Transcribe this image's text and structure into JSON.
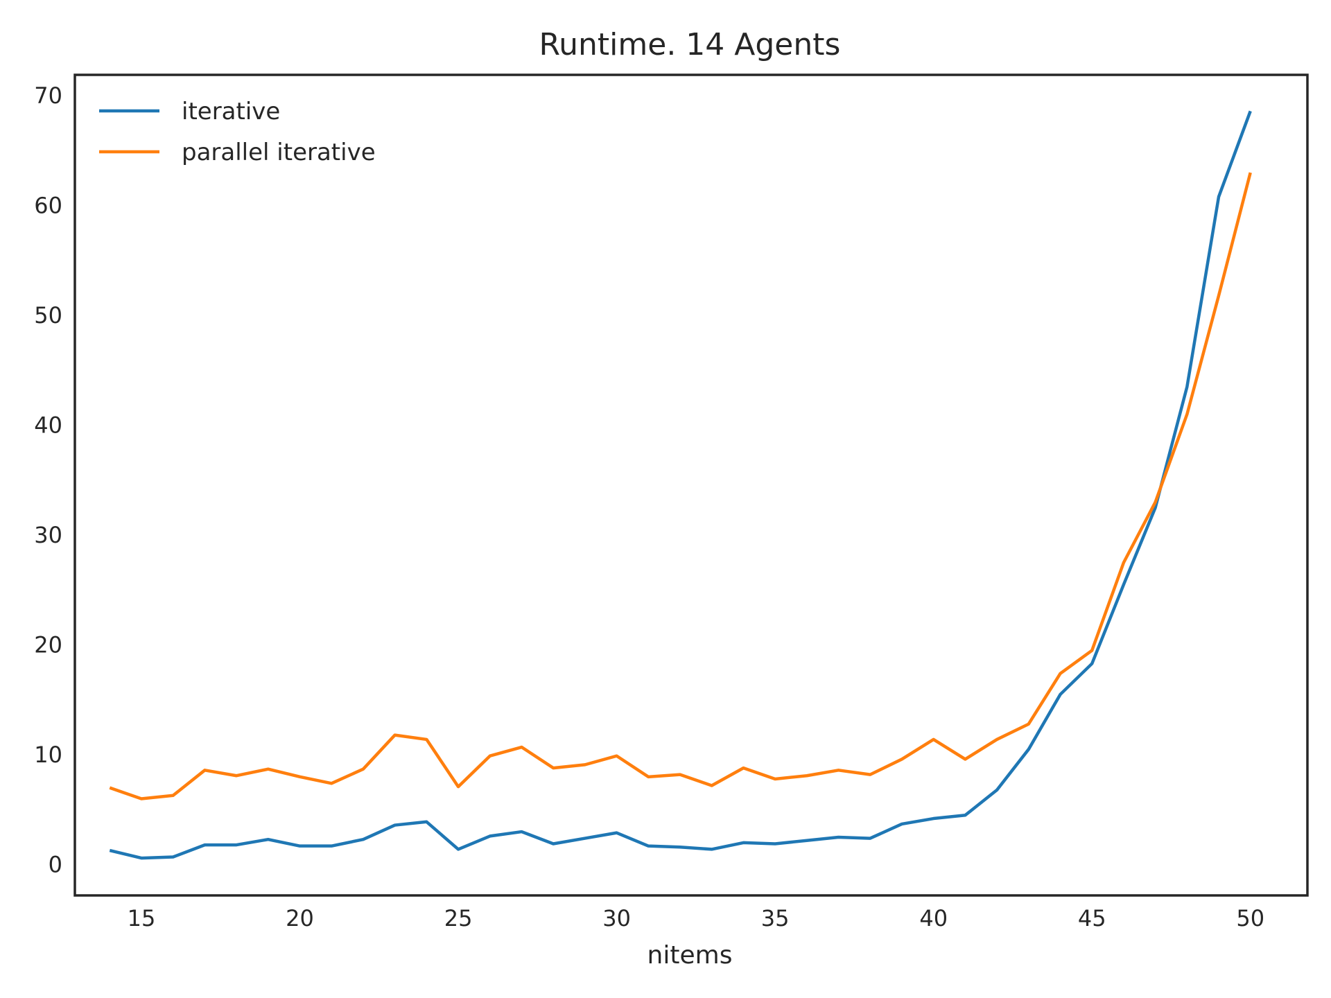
{
  "chart_data": {
    "type": "line",
    "title": "Runtime. 14 Agents",
    "xlabel": "nitems",
    "ylabel": "",
    "xlim": [
      12.9,
      51.8
    ],
    "ylim": [
      -2.8,
      71.9
    ],
    "xticks": [
      15,
      20,
      25,
      30,
      35,
      40,
      45,
      50
    ],
    "yticks": [
      0,
      10,
      20,
      30,
      40,
      50,
      60,
      70
    ],
    "grid": false,
    "legend_position": "top-left",
    "x": [
      14,
      15,
      16,
      17,
      18,
      19,
      20,
      21,
      22,
      23,
      24,
      25,
      26,
      27,
      28,
      29,
      30,
      31,
      32,
      33,
      34,
      35,
      36,
      37,
      38,
      39,
      40,
      41,
      42,
      43,
      44,
      45,
      46,
      47,
      48,
      49,
      50
    ],
    "series": [
      {
        "name": "iterative",
        "color": "#1f77b4",
        "values": [
          1.3,
          0.6,
          0.7,
          1.8,
          1.8,
          2.3,
          1.7,
          1.7,
          2.3,
          3.6,
          3.9,
          1.4,
          2.6,
          3.0,
          1.9,
          2.4,
          2.9,
          1.7,
          1.6,
          1.4,
          2.0,
          1.9,
          2.2,
          2.5,
          2.4,
          3.7,
          4.2,
          4.5,
          6.8,
          10.5,
          15.5,
          18.3,
          25.5,
          32.5,
          43.5,
          60.8,
          68.6
        ]
      },
      {
        "name": "parallel iterative",
        "color": "#ff7f0e",
        "values": [
          7.0,
          6.0,
          6.3,
          8.6,
          8.1,
          8.7,
          8.0,
          7.4,
          8.7,
          11.8,
          11.4,
          7.1,
          9.9,
          10.7,
          8.8,
          9.1,
          9.9,
          8.0,
          8.2,
          7.2,
          8.8,
          7.8,
          8.1,
          8.6,
          8.2,
          9.6,
          11.4,
          9.6,
          11.4,
          12.8,
          17.4,
          19.5,
          27.5,
          33.0,
          41.0,
          51.8,
          63.0
        ]
      }
    ]
  }
}
